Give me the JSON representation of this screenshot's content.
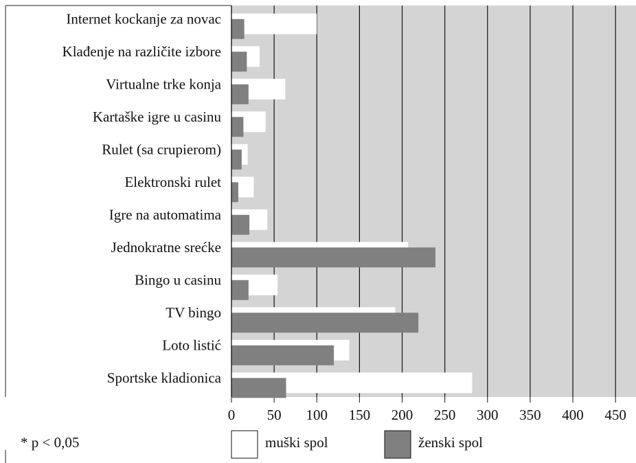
{
  "chart_data": {
    "type": "barh",
    "categories": [
      "Internet kockanje za novac",
      "Klađenje na različite izbore",
      "Virtualne trke konja",
      "Kartaške igre u casinu",
      "Rulet (sa crupierom)",
      "Elektronski rulet",
      "Igre na automatima",
      "Jednokratne srećke",
      "Bingo u casinu",
      "TV bingo",
      "Loto listić",
      "Sportske kladionica"
    ],
    "series": [
      {
        "name": "muški spol",
        "color": "#ffffff",
        "values": [
          100,
          33,
          63,
          40,
          19,
          26,
          42,
          207,
          54,
          192,
          138,
          282
        ]
      },
      {
        "name": "ženski spol",
        "color": "#808080",
        "values": [
          15,
          18,
          20,
          14,
          12,
          8,
          21,
          239,
          20,
          219,
          120,
          64
        ]
      }
    ],
    "xlim": [
      0,
      474
    ],
    "xticks": [
      0,
      50,
      100,
      150,
      200,
      250,
      300,
      350,
      400,
      450
    ],
    "grid": true,
    "background": "#d4d4d4",
    "note": "* p < 0,05"
  }
}
